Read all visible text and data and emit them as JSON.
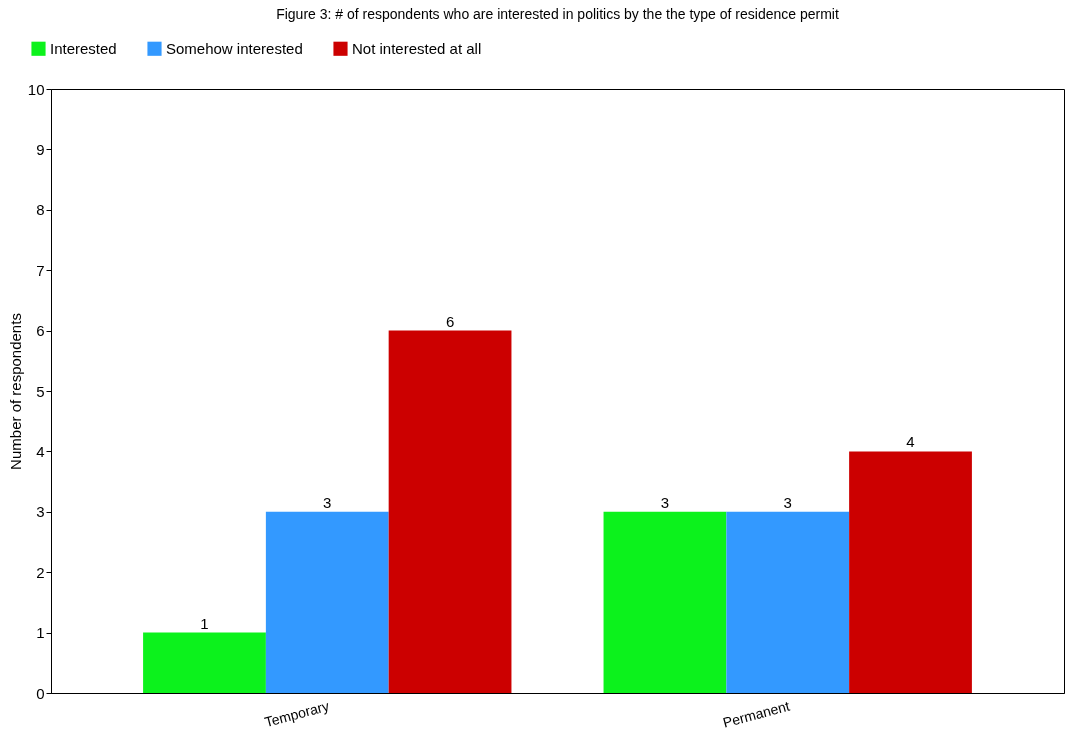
{
  "chart_data": {
    "type": "bar",
    "title": "Figure 3: # of respondents who are interested in politics by the the type of residence permit",
    "ylabel": "Number of respondents",
    "categories": [
      "Temporary",
      "Permanent"
    ],
    "series": [
      {
        "name": "Interested",
        "color": "#0cf21c",
        "values": [
          1,
          3
        ]
      },
      {
        "name": "Somehow interested",
        "color": "#3399ff",
        "values": [
          3,
          3
        ]
      },
      {
        "name": "Not interested at all",
        "color": "#cc0000",
        "values": [
          6,
          4
        ]
      }
    ],
    "ylim": [
      0,
      10
    ],
    "yticks": [
      0,
      1,
      2,
      3,
      4,
      5,
      6,
      7,
      8,
      9,
      10
    ],
    "grid": false,
    "legend": "top left",
    "data_labels": true
  }
}
